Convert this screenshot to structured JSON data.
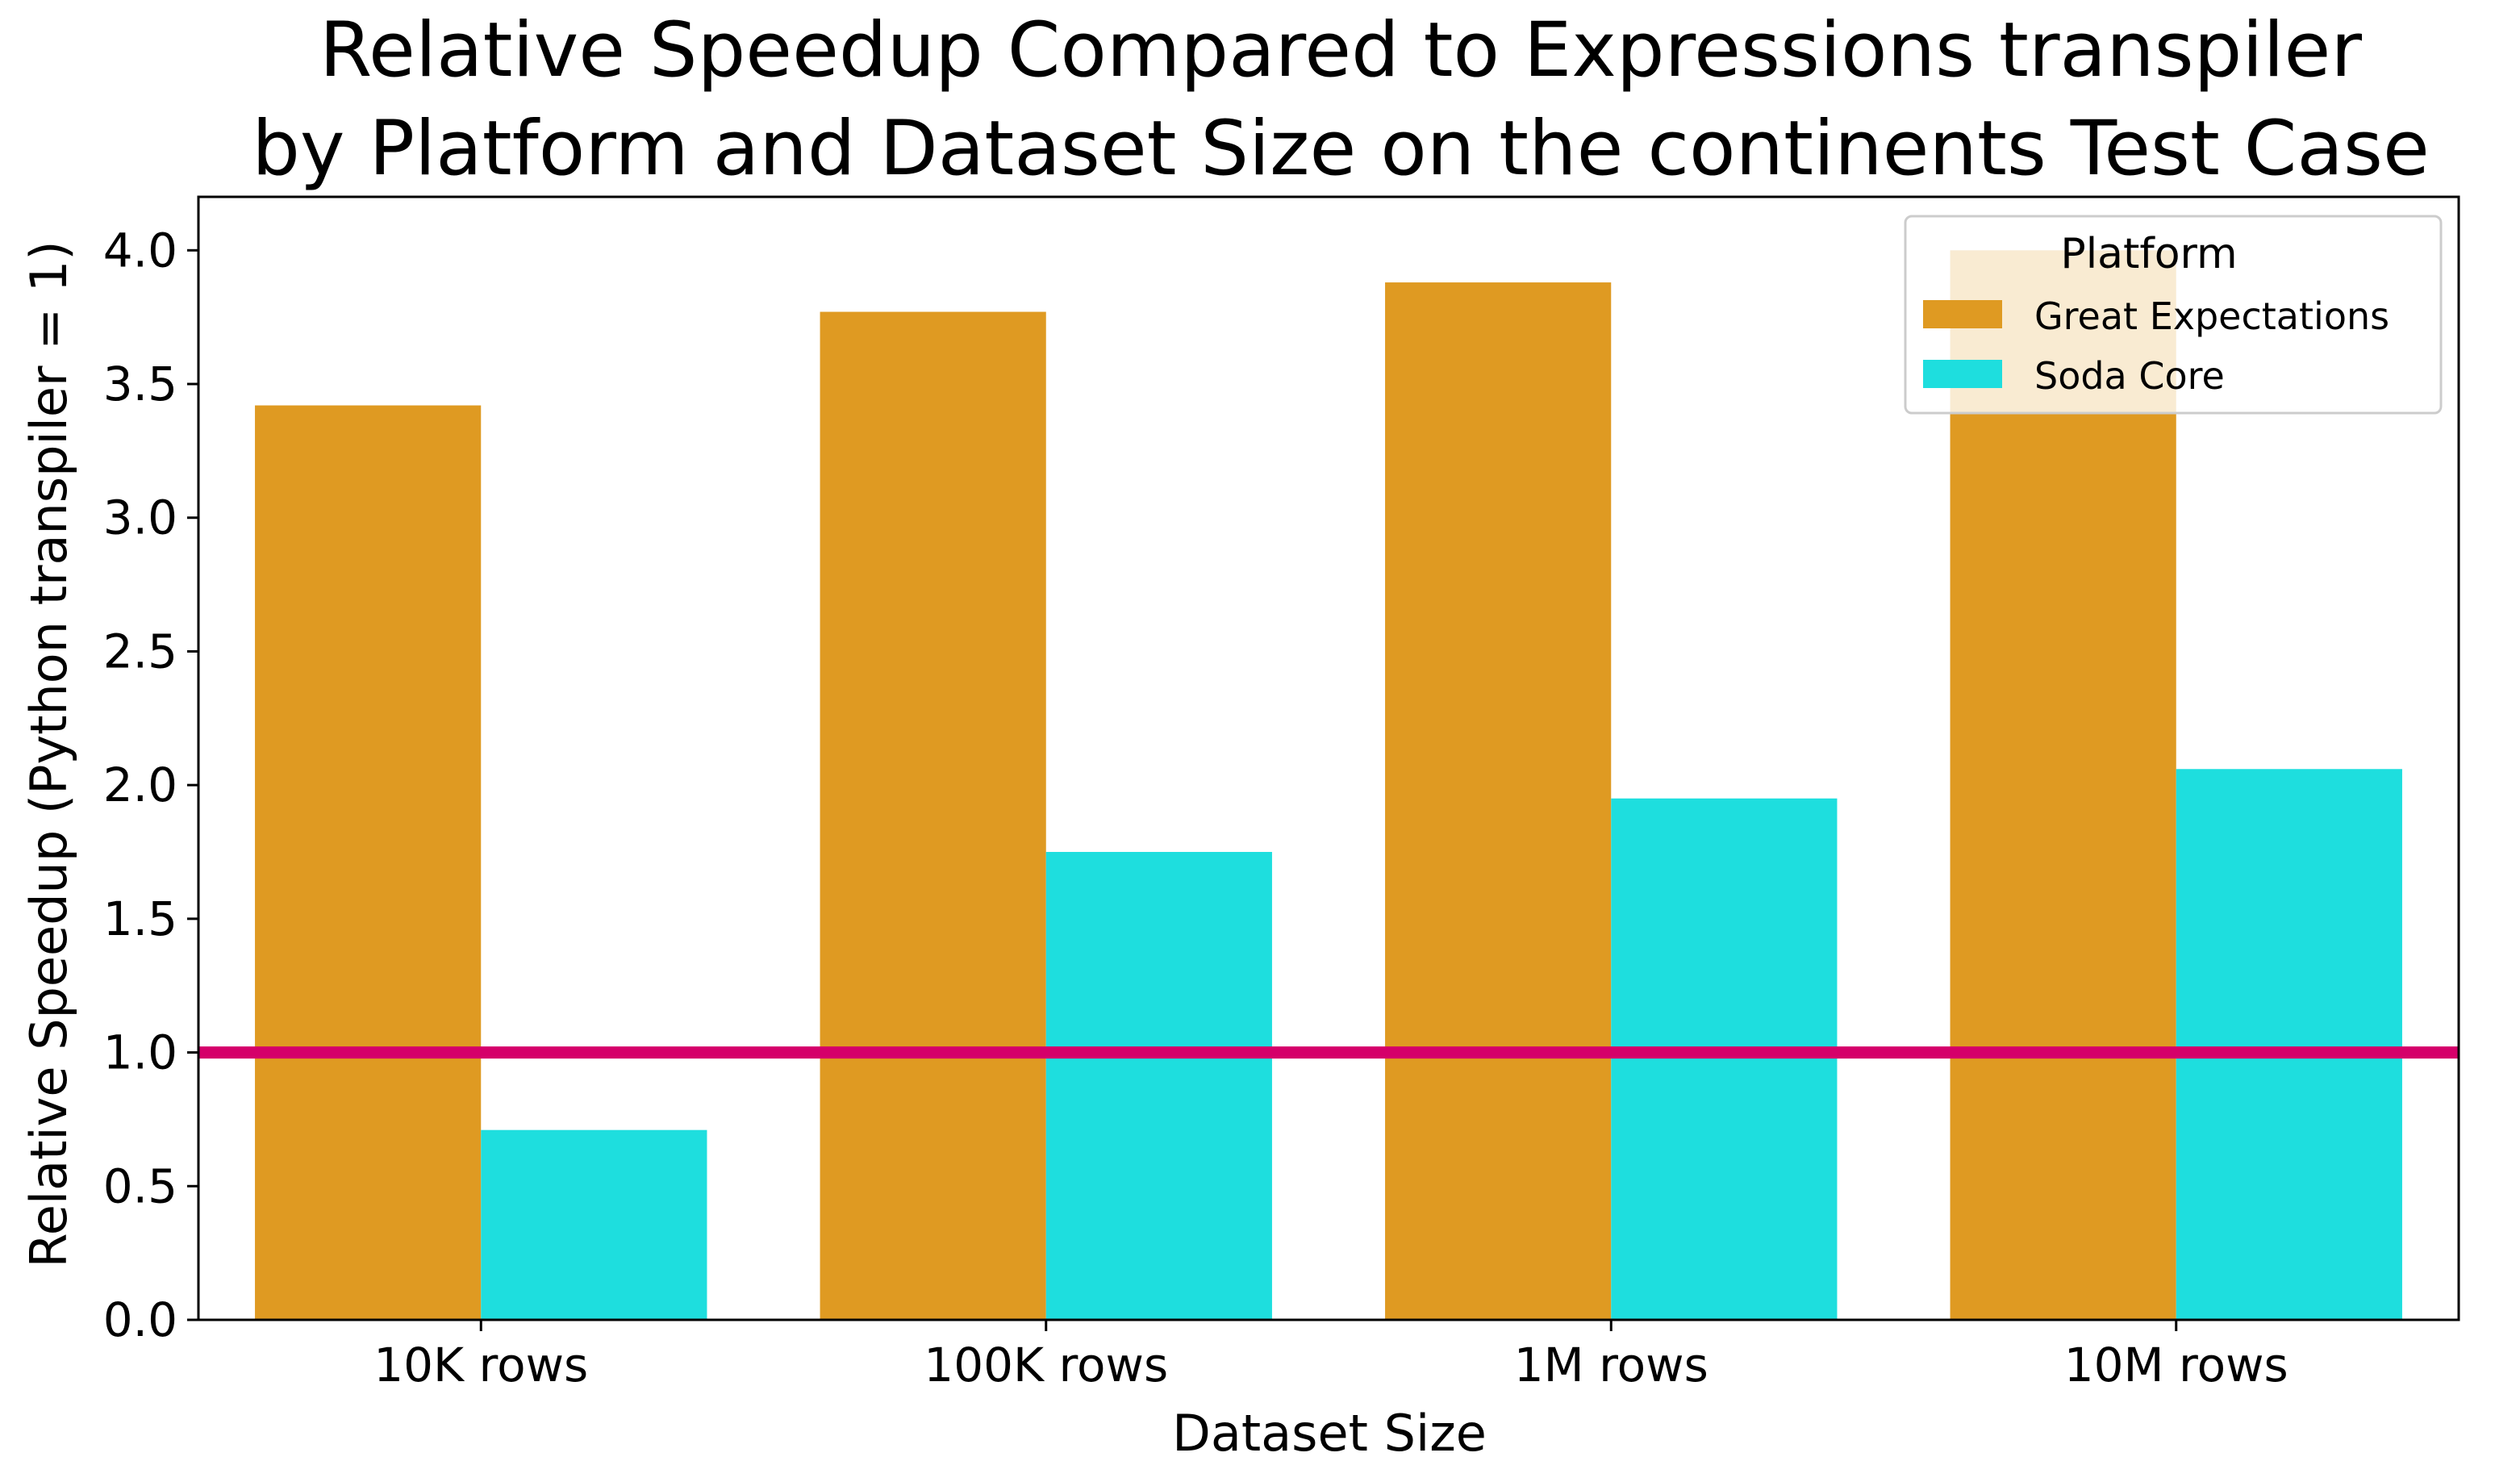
{
  "chart_data": {
    "type": "bar",
    "title_line1": "Relative Speedup Compared to Expressions transpiler",
    "title_line2": "by Platform and Dataset Size on the continents Test Case",
    "xlabel": "Dataset Size",
    "ylabel": "Relative Speedup (Python transpiler = 1)",
    "categories": [
      "10K rows",
      "100K rows",
      "1M rows",
      "10M rows"
    ],
    "ylim": [
      0,
      4.2
    ],
    "yticks": [
      "0.0",
      "0.5",
      "1.0",
      "1.5",
      "2.0",
      "2.5",
      "3.0",
      "3.5",
      "4.0"
    ],
    "series": [
      {
        "name": "Great Expectations",
        "color": "#DF9A22",
        "values": [
          3.42,
          3.77,
          3.88,
          4.0
        ]
      },
      {
        "name": "Soda Core",
        "color": "#1EDEDE",
        "values": [
          0.71,
          1.75,
          1.95,
          2.06
        ]
      }
    ],
    "reference_line": {
      "y": 1.0,
      "color": "#D5006A"
    },
    "legend": {
      "title": "Platform",
      "placement": "top-right"
    },
    "grid": false
  }
}
